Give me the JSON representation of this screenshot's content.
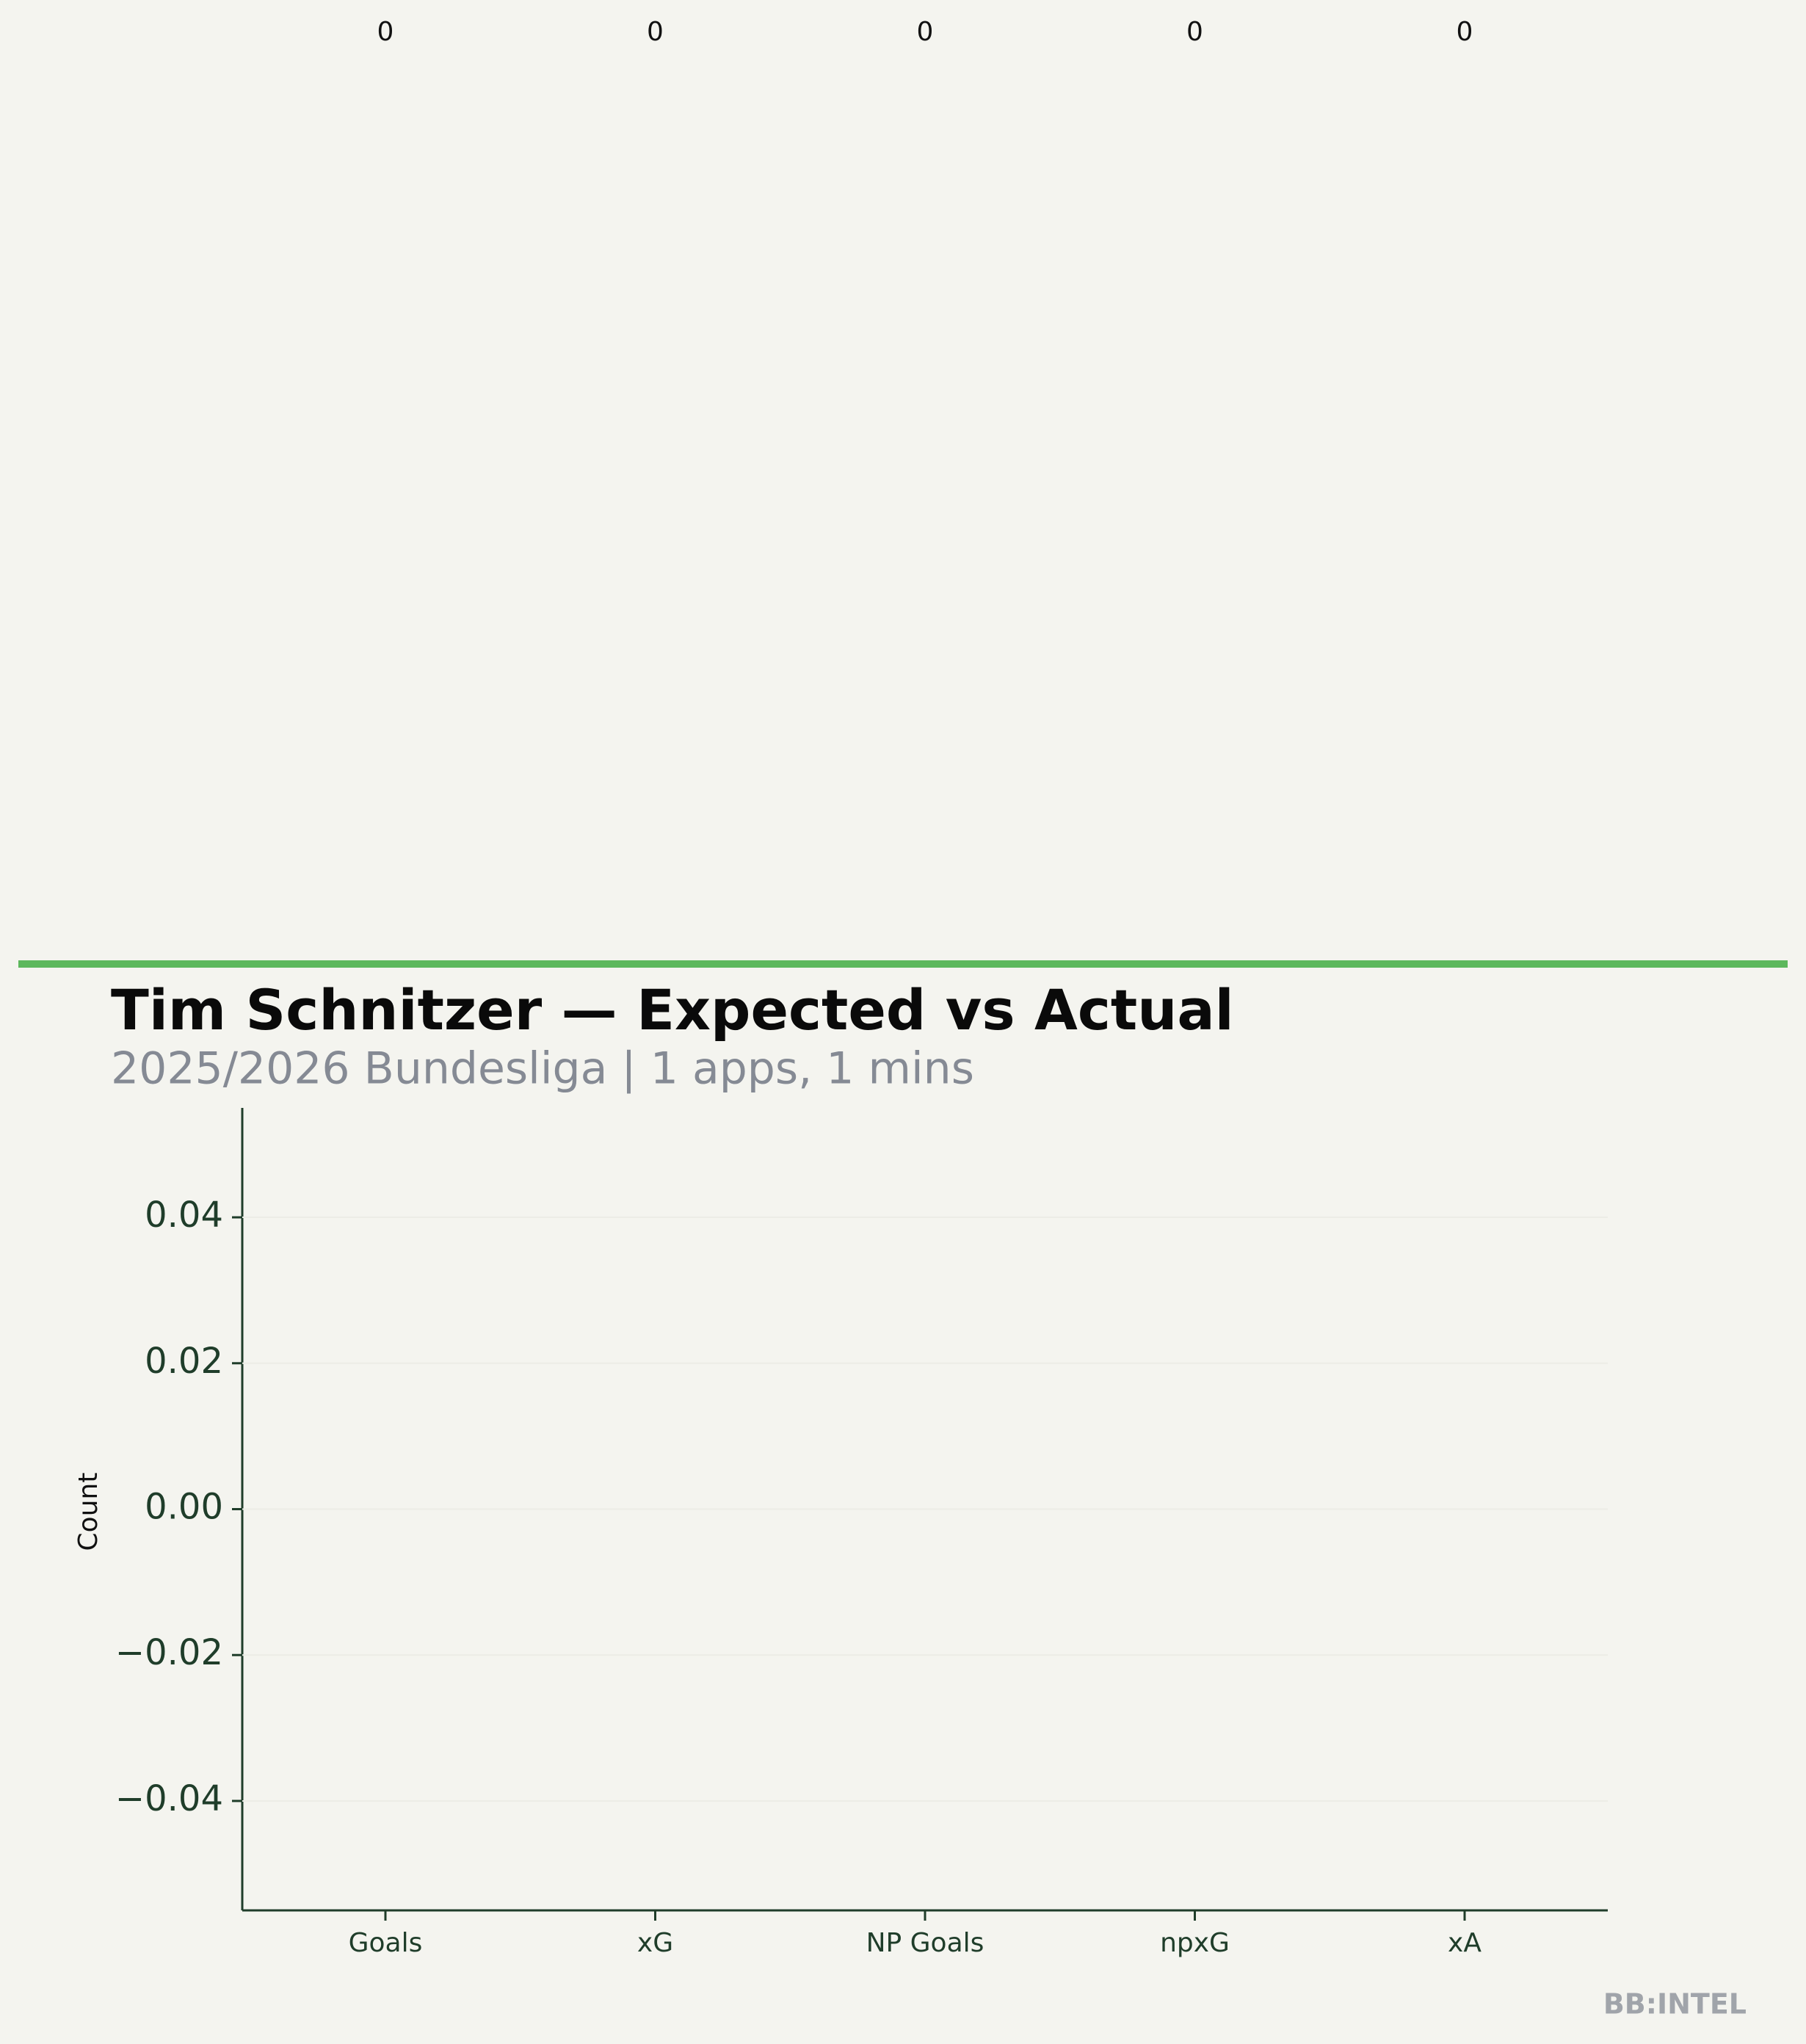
{
  "chart_data": {
    "type": "bar",
    "title": "Tim Schnitzer — Expected vs Actual",
    "subtitle": "2025/2026 Bundesliga | 1 apps, 1 mins",
    "y_label": "Count",
    "categories": [
      "Goals",
      "xG",
      "NP Goals",
      "npxG",
      "xA"
    ],
    "values": [
      0,
      0,
      0,
      0,
      0
    ],
    "ylim": [
      -0.055,
      0.055
    ],
    "yticks": [
      {
        "value": -0.04,
        "label": "−0.04"
      },
      {
        "value": -0.02,
        "label": "−0.02"
      },
      {
        "value": 0,
        "label": "0.00"
      },
      0.02,
      0.04
    ],
    "grid": true,
    "watermark": "BB:INTEL"
  }
}
